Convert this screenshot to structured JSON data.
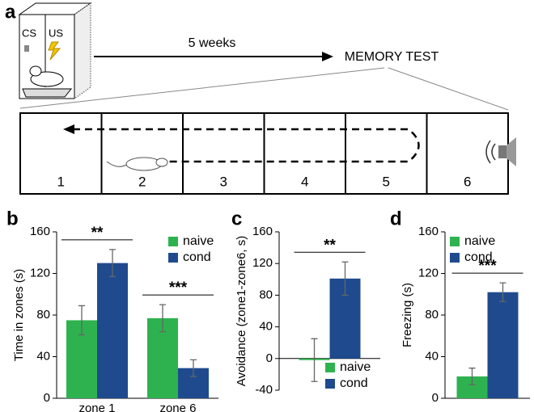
{
  "panel_a": {
    "label": "a",
    "cs": "CS",
    "us": "US",
    "delay": "5 weeks",
    "test": "MEMORY TEST",
    "zones": [
      "1",
      "2",
      "3",
      "4",
      "5",
      "6"
    ]
  },
  "chart_data": [
    {
      "type": "bar",
      "label": "b",
      "ylabel": "Time in zones (s)",
      "categories": [
        "zone 1",
        "zone 6"
      ],
      "series": [
        {
          "name": "naive",
          "color": "#2eb24f",
          "values": [
            75,
            77
          ],
          "errors": [
            14,
            13
          ]
        },
        {
          "name": "cond",
          "color": "#1f4b8e",
          "values": [
            130,
            29
          ],
          "errors": [
            13,
            8
          ]
        }
      ],
      "ylim": [
        0,
        160
      ],
      "yticks": [
        0,
        40,
        80,
        120,
        160
      ],
      "legend": "upper right",
      "annotations": [
        "**",
        "***"
      ]
    },
    {
      "type": "bar",
      "label": "c",
      "ylabel": "Avoidance (zone1-zone6, s)",
      "categories": [
        null
      ],
      "series": [
        {
          "name": "naive",
          "color": "#2eb24f",
          "values": [
            -2
          ],
          "errors": [
            27
          ]
        },
        {
          "name": "cond",
          "color": "#1f4b8e",
          "values": [
            101
          ],
          "errors": [
            21
          ]
        }
      ],
      "ylim": [
        -40,
        160
      ],
      "yticks": [
        -40,
        0,
        40,
        80,
        120,
        160
      ],
      "legend": "lower right",
      "annotations": [
        "**"
      ]
    },
    {
      "type": "bar",
      "label": "d",
      "ylabel": "Freezing (s)",
      "categories": [
        null
      ],
      "series": [
        {
          "name": "naive",
          "color": "#2eb24f",
          "values": [
            21
          ],
          "errors": [
            8
          ]
        },
        {
          "name": "cond",
          "color": "#1f4b8e",
          "values": [
            102
          ],
          "errors": [
            9
          ]
        }
      ],
      "ylim": [
        0,
        160
      ],
      "yticks": [
        0,
        40,
        80,
        120,
        160
      ],
      "legend": "upper left",
      "annotations": [
        "***"
      ]
    }
  ]
}
